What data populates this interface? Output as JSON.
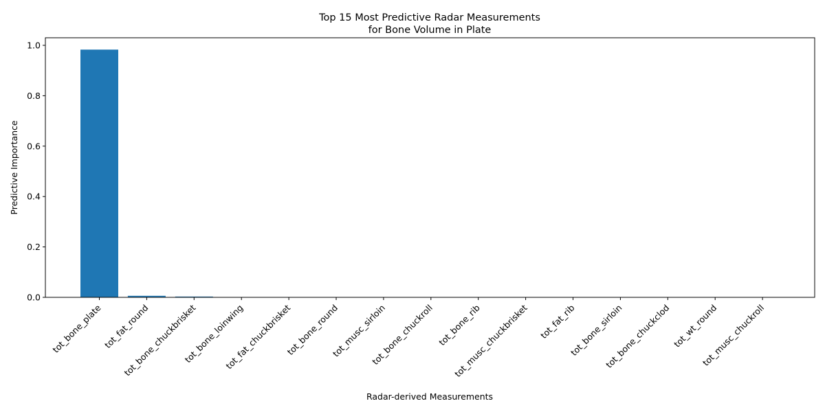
{
  "chart_data": {
    "type": "bar",
    "title_line1": "Top 15 Most Predictive Radar Measurements",
    "title_line2": "for Bone Volume in Plate",
    "xlabel": "Radar-derived Measurements",
    "ylabel": "Predictive Importance",
    "ylim": [
      0,
      1.03
    ],
    "yticks": [
      0.0,
      0.2,
      0.4,
      0.6,
      0.8,
      1.0
    ],
    "ytick_labels": [
      "0.0",
      "0.2",
      "0.4",
      "0.6",
      "0.8",
      "1.0"
    ],
    "bar_color": "#1f77b4",
    "grid": false,
    "categories": [
      "tot_bone_plate",
      "tot_fat_round",
      "tot_bone_chuckbrisket",
      "tot_bone_loinwing",
      "tot_fat_chuckbrisket",
      "tot_bone_round",
      "tot_musc_sirloin",
      "tot_bone_chuckroll",
      "tot_bone_rib",
      "tot_musc_chuckbrisket",
      "tot_fat_rib",
      "tot_bone_sirloin",
      "tot_bone_chuckclod",
      "tot_wt_round",
      "tot_musc_chuckroll"
    ],
    "values": [
      0.983,
      0.006,
      0.003,
      0.001,
      0.001,
      0.0008,
      0.0006,
      0.0005,
      0.0004,
      0.0003,
      0.0003,
      0.0002,
      0.0002,
      0.0001,
      0.0001
    ]
  }
}
